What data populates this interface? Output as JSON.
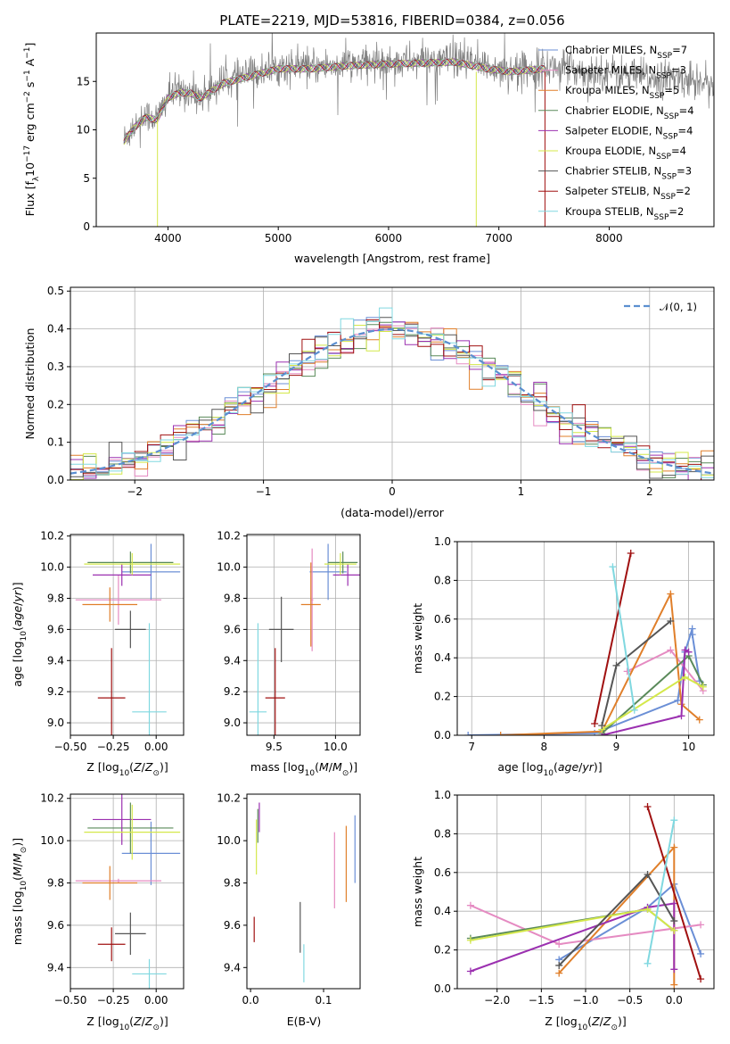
{
  "figure_title": "PLATE=2219, MJD=53816, FIBERID=0384, z=0.056",
  "colors": {
    "Chabrier MILES": "#6b8fd6",
    "Salpeter MILES": "#e58bc2",
    "Kroupa MILES": "#e07f2a",
    "Chabrier ELODIE": "#5a8a5a",
    "Salpeter ELODIE": "#9b30b0",
    "Kroupa ELODIE": "#d4e84a",
    "Chabrier STELIB": "#555555",
    "Salpeter STELIB": "#a01010",
    "Kroupa STELIB": "#80d8e0",
    "normal": "#5b8fd0"
  },
  "chart_data": [
    {
      "id": "spectrum",
      "type": "line",
      "xlabel": "wavelength [Angstrom, rest frame]",
      "ylabel": "Flux [f_λ 10^-17 erg cm^-2 s^-1 A^-1]",
      "xlim": [
        3350,
        8950
      ],
      "ylim": [
        0,
        20
      ],
      "xticks": [
        4000,
        5000,
        6000,
        7000,
        8000
      ],
      "yticks": [
        0,
        5,
        10,
        15
      ],
      "grid": false,
      "legend_position": "top-right",
      "legend": [
        {
          "name": "Chabrier MILES",
          "nssp": "7"
        },
        {
          "name": "Salpeter MILES",
          "nssp": "3"
        },
        {
          "name": "Kroupa MILES",
          "nssp": "5"
        },
        {
          "name": "Chabrier ELODIE",
          "nssp": "4"
        },
        {
          "name": "Salpeter ELODIE",
          "nssp": "4"
        },
        {
          "name": "Kroupa ELODIE",
          "nssp": "4"
        },
        {
          "name": "Chabrier STELIB",
          "nssp": "3"
        },
        {
          "name": "Salpeter STELIB",
          "nssp": "2"
        },
        {
          "name": "Kroupa STELIB",
          "nssp": "2"
        }
      ],
      "continuum": {
        "x": [
          3600,
          3700,
          3800,
          3900,
          4000,
          4100,
          4200,
          4300,
          4500,
          4700,
          5000,
          5300,
          5600,
          6000,
          6300,
          6600,
          6900,
          7100,
          7300,
          7400,
          7600,
          7800,
          8000,
          8300,
          8600,
          8950
        ],
        "y": [
          9,
          10.5,
          11.5,
          11.2,
          13.5,
          14,
          14,
          13.5,
          15,
          15.6,
          16.5,
          16.5,
          16.8,
          17,
          17.1,
          17.2,
          16.5,
          16.2,
          16.4,
          16.5,
          16.5,
          16,
          16,
          15.5,
          15.3,
          15
        ]
      },
      "model_range": [
        3600,
        7420
      ],
      "data_range": [
        3600,
        8950
      ]
    },
    {
      "id": "residuals",
      "type": "step",
      "xlabel": "(data-model)/error",
      "ylabel": "Normed distribution",
      "xlim": [
        -2.5,
        2.5
      ],
      "ylim": [
        0,
        0.51
      ],
      "xticks": [
        -2,
        -1,
        0,
        1,
        2
      ],
      "yticks": [
        0.0,
        0.1,
        0.2,
        0.3,
        0.4,
        0.5
      ],
      "bin_width": 0.1,
      "grid": true,
      "legend_position": "top-right",
      "reference_label": "𝒩(0, 1)"
    },
    {
      "id": "age-vs-Z",
      "type": "errorbar",
      "xlabel": "Z [log10(Z/Z⊙)]",
      "ylabel": "age [log10(age/yr)]",
      "xlim": [
        -0.5,
        0.16
      ],
      "ylim": [
        8.92,
        10.21
      ],
      "xticks": [
        -0.5,
        -0.25,
        0.0
      ],
      "yticks": [
        9.0,
        9.2,
        9.4,
        9.6,
        9.8,
        10.0,
        10.2
      ],
      "grid": true,
      "points": [
        {
          "model": "Chabrier MILES",
          "x": -0.03,
          "xerr": 0.17,
          "y": 9.97,
          "yerr": 0.18
        },
        {
          "model": "Salpeter MILES",
          "x": -0.22,
          "xerr": 0.25,
          "y": 9.79,
          "yerr": 0.16
        },
        {
          "model": "Kroupa MILES",
          "x": -0.27,
          "xerr": 0.16,
          "y": 9.76,
          "yerr": 0.11
        },
        {
          "model": "Chabrier ELODIE",
          "x": -0.15,
          "xerr": 0.25,
          "y": 10.03,
          "yerr": 0.07
        },
        {
          "model": "Salpeter ELODIE",
          "x": -0.2,
          "xerr": 0.17,
          "y": 9.95,
          "yerr": 0.07
        },
        {
          "model": "Kroupa ELODIE",
          "x": -0.14,
          "xerr": 0.28,
          "y": 10.02,
          "yerr": 0.07
        },
        {
          "model": "Chabrier STELIB",
          "x": -0.15,
          "xerr": 0.09,
          "y": 9.6,
          "yerr": 0.12
        },
        {
          "model": "Salpeter STELIB",
          "x": -0.26,
          "xerr": 0.08,
          "y": 9.16,
          "yerr": 0.32
        },
        {
          "model": "Kroupa STELIB",
          "x": -0.04,
          "xerr": 0.1,
          "y": 9.07,
          "yerr": 0.57
        }
      ]
    },
    {
      "id": "age-vs-mass",
      "type": "errorbar",
      "xlabel": "mass [log10(M/M⊙)]",
      "ylabel": "",
      "xlim": [
        9.28,
        10.2
      ],
      "ylim": [
        8.92,
        10.21
      ],
      "xticks": [
        9.5,
        10.0
      ],
      "yticks": [
        9.0,
        9.2,
        9.4,
        9.6,
        9.8,
        10.0,
        10.2
      ],
      "grid": true,
      "points": [
        {
          "model": "Chabrier MILES",
          "x": 9.94,
          "xerr": 0.15,
          "y": 9.97,
          "yerr": 0.18
        },
        {
          "model": "Salpeter MILES",
          "x": 9.81,
          "xerr": 0.01,
          "y": 9.79,
          "yerr": 0.33
        },
        {
          "model": "Kroupa MILES",
          "x": 9.8,
          "xerr": 0.08,
          "y": 9.76,
          "yerr": 0.27
        },
        {
          "model": "Chabrier ELODIE",
          "x": 10.06,
          "xerr": 0.12,
          "y": 10.03,
          "yerr": 0.07
        },
        {
          "model": "Salpeter ELODIE",
          "x": 10.1,
          "xerr": 0.12,
          "y": 9.95,
          "yerr": 0.07
        },
        {
          "model": "Kroupa ELODIE",
          "x": 10.04,
          "xerr": 0.13,
          "y": 10.02,
          "yerr": 0.07
        },
        {
          "model": "Chabrier STELIB",
          "x": 9.56,
          "xerr": 0.1,
          "y": 9.6,
          "yerr": 0.21
        },
        {
          "model": "Salpeter STELIB",
          "x": 9.51,
          "xerr": 0.08,
          "y": 9.16,
          "yerr": 0.32
        },
        {
          "model": "Kroupa STELIB",
          "x": 9.37,
          "xerr": 0.07,
          "y": 9.07,
          "yerr": 0.57
        }
      ]
    },
    {
      "id": "weight-vs-age",
      "type": "line",
      "xlabel": "age [log10(age/yr)]",
      "ylabel": "mass weight",
      "xlim": [
        6.8,
        10.35
      ],
      "ylim": [
        0,
        1
      ],
      "xticks": [
        7,
        8,
        9,
        10
      ],
      "yticks": [
        0.0,
        0.2,
        0.4,
        0.6,
        0.8,
        1.0
      ],
      "grid": true,
      "series": [
        {
          "model": "Chabrier MILES",
          "x": [
            6.95,
            8.7,
            9.85,
            9.95,
            10.05,
            10.05,
            10.15
          ],
          "y": [
            0.0,
            0.01,
            0.18,
            0.43,
            0.55,
            0.52,
            0.28
          ]
        },
        {
          "model": "Salpeter MILES",
          "x": [
            9.15,
            9.75,
            10.2
          ],
          "y": [
            0.33,
            0.44,
            0.23
          ]
        },
        {
          "model": "Kroupa MILES",
          "x": [
            7.4,
            8.8,
            9.75,
            9.9,
            10.15
          ],
          "y": [
            0.0,
            0.02,
            0.73,
            0.16,
            0.08
          ]
        },
        {
          "model": "Chabrier ELODIE",
          "x": [
            8.8,
            10.0,
            10.2
          ],
          "y": [
            0.01,
            0.41,
            0.26
          ]
        },
        {
          "model": "Salpeter ELODIE",
          "x": [
            8.8,
            9.9,
            9.95,
            10.0
          ],
          "y": [
            0.0,
            0.1,
            0.44,
            0.43
          ]
        },
        {
          "model": "Kroupa ELODIE",
          "x": [
            8.8,
            9.95,
            10.2
          ],
          "y": [
            0.03,
            0.3,
            0.25
          ]
        },
        {
          "model": "Chabrier STELIB",
          "x": [
            8.8,
            9.0,
            9.75
          ],
          "y": [
            0.05,
            0.36,
            0.59
          ]
        },
        {
          "model": "Salpeter STELIB",
          "x": [
            8.7,
            9.2
          ],
          "y": [
            0.06,
            0.94
          ]
        },
        {
          "model": "Kroupa STELIB",
          "x": [
            8.95,
            9.25
          ],
          "y": [
            0.87,
            0.13
          ]
        }
      ]
    },
    {
      "id": "mass-vs-Z",
      "type": "errorbar",
      "xlabel": "Z [log10(Z/Z⊙)]",
      "ylabel": "mass [log10(M/M⊙)]",
      "xlim": [
        -0.5,
        0.16
      ],
      "ylim": [
        9.3,
        10.22
      ],
      "xticks": [
        -0.5,
        -0.25,
        0.0
      ],
      "yticks": [
        9.4,
        9.6,
        9.8,
        10.0,
        10.2
      ],
      "grid": true,
      "points": [
        {
          "model": "Chabrier MILES",
          "x": -0.03,
          "xerr": 0.17,
          "y": 9.94,
          "yerr": 0.15
        },
        {
          "model": "Salpeter MILES",
          "x": -0.22,
          "xerr": 0.25,
          "y": 9.81,
          "yerr": 0.01
        },
        {
          "model": "Kroupa MILES",
          "x": -0.27,
          "xerr": 0.16,
          "y": 9.8,
          "yerr": 0.08
        },
        {
          "model": "Chabrier ELODIE",
          "x": -0.15,
          "xerr": 0.25,
          "y": 10.06,
          "yerr": 0.12
        },
        {
          "model": "Salpeter ELODIE",
          "x": -0.2,
          "xerr": 0.17,
          "y": 10.1,
          "yerr": 0.12
        },
        {
          "model": "Kroupa ELODIE",
          "x": -0.14,
          "xerr": 0.28,
          "y": 10.04,
          "yerr": 0.13
        },
        {
          "model": "Chabrier STELIB",
          "x": -0.15,
          "xerr": 0.09,
          "y": 9.56,
          "yerr": 0.1
        },
        {
          "model": "Salpeter STELIB",
          "x": -0.26,
          "xerr": 0.08,
          "y": 9.51,
          "yerr": 0.08
        },
        {
          "model": "Kroupa STELIB",
          "x": -0.04,
          "xerr": 0.1,
          "y": 9.37,
          "yerr": 0.07
        }
      ]
    },
    {
      "id": "mass-vs-ebv",
      "type": "errorbar",
      "xlabel": "E(B-V)",
      "ylabel": "",
      "xlim": [
        -0.005,
        0.15
      ],
      "ylim": [
        9.3,
        10.22
      ],
      "xticks": [
        0.0,
        0.1
      ],
      "yticks": [
        9.4,
        9.6,
        9.8,
        10.0,
        10.2
      ],
      "grid": false,
      "points": [
        {
          "model": "Chabrier MILES",
          "x": 0.143,
          "y": 9.96,
          "yerr": 0.16
        },
        {
          "model": "Salpeter MILES",
          "x": 0.115,
          "y": 9.86,
          "yerr": 0.18
        },
        {
          "model": "Kroupa MILES",
          "x": 0.131,
          "y": 9.89,
          "yerr": 0.18
        },
        {
          "model": "Chabrier ELODIE",
          "x": 0.01,
          "y": 10.07,
          "yerr": 0.08
        },
        {
          "model": "Salpeter ELODIE",
          "x": 0.012,
          "y": 10.11,
          "yerr": 0.07
        },
        {
          "model": "Kroupa ELODIE",
          "x": 0.008,
          "y": 9.97,
          "yerr": 0.13
        },
        {
          "model": "Chabrier STELIB",
          "x": 0.068,
          "y": 9.59,
          "yerr": 0.12
        },
        {
          "model": "Salpeter STELIB",
          "x": 0.005,
          "y": 9.58,
          "yerr": 0.06
        },
        {
          "model": "Kroupa STELIB",
          "x": 0.073,
          "y": 9.42,
          "yerr": 0.09
        }
      ]
    },
    {
      "id": "weight-vs-Z",
      "type": "line",
      "xlabel": "Z [log10(Z/Z⊙)]",
      "ylabel": "mass weight",
      "xlim": [
        -2.45,
        0.45
      ],
      "ylim": [
        0,
        1
      ],
      "xticks": [
        -2.0,
        -1.5,
        -1.0,
        -0.5,
        0.0
      ],
      "yticks": [
        0.0,
        0.2,
        0.4,
        0.6,
        0.8,
        1.0
      ],
      "grid": true,
      "series": [
        {
          "model": "Chabrier MILES",
          "x": [
            -1.3,
            -0.3,
            0.0,
            0.3
          ],
          "y": [
            0.15,
            0.42,
            0.54,
            0.18
          ]
        },
        {
          "model": "Salpeter MILES",
          "x": [
            -2.3,
            -1.3,
            0.3
          ],
          "y": [
            0.43,
            0.23,
            0.33
          ]
        },
        {
          "model": "Kroupa MILES",
          "x": [
            -1.3,
            0.0,
            0.0
          ],
          "y": [
            0.08,
            0.73,
            0.02
          ]
        },
        {
          "model": "Chabrier ELODIE",
          "x": [
            -2.3,
            -0.3,
            0.0
          ],
          "y": [
            0.26,
            0.41,
            0.3
          ]
        },
        {
          "model": "Salpeter ELODIE",
          "x": [
            -2.3,
            -0.3,
            0.0,
            0.0
          ],
          "y": [
            0.09,
            0.42,
            0.44,
            0.1
          ]
        },
        {
          "model": "Kroupa ELODIE",
          "x": [
            -2.3,
            -0.3,
            0.0
          ],
          "y": [
            0.25,
            0.41,
            0.3
          ]
        },
        {
          "model": "Chabrier STELIB",
          "x": [
            -1.3,
            -0.3,
            0.0
          ],
          "y": [
            0.12,
            0.59,
            0.35
          ]
        },
        {
          "model": "Salpeter STELIB",
          "x": [
            -0.3,
            0.3
          ],
          "y": [
            0.94,
            0.05
          ]
        },
        {
          "model": "Kroupa STELIB",
          "x": [
            0.0,
            -0.3
          ],
          "y": [
            0.87,
            0.13
          ]
        }
      ]
    }
  ]
}
